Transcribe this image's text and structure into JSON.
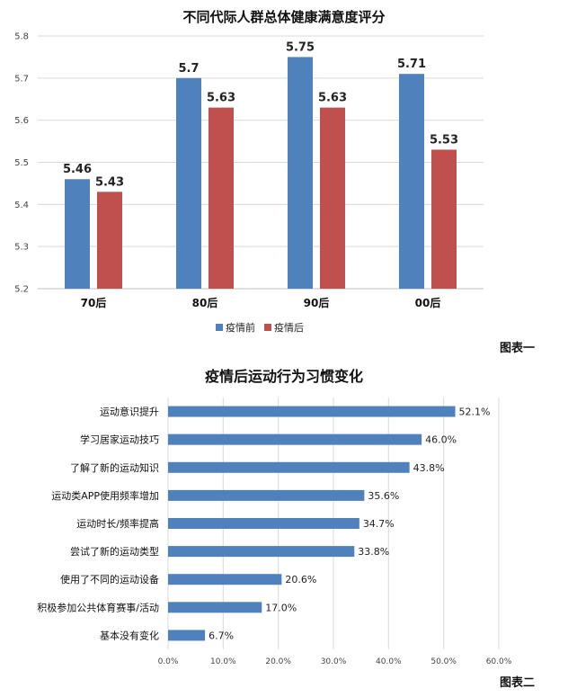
{
  "figure_labels": {
    "fig1": "图表一",
    "fig2": "图表二"
  },
  "chart_data": [
    {
      "type": "bar",
      "title": "不同代际人群总体健康满意度评分",
      "categories": [
        "70后",
        "80后",
        "90后",
        "00后"
      ],
      "series": [
        {
          "name": "疫情前",
          "values": [
            5.46,
            5.7,
            5.75,
            5.71
          ],
          "labels": [
            "5.46",
            "5.7",
            "5.75",
            "5.71"
          ],
          "color": "#4F81BD"
        },
        {
          "name": "疫情后",
          "values": [
            5.43,
            5.63,
            5.63,
            5.53
          ],
          "labels": [
            "5.43",
            "5.63",
            "5.63",
            "5.53"
          ],
          "color": "#C0504D"
        }
      ],
      "ylim": [
        5.2,
        5.8
      ],
      "yticks": [
        "5.2",
        "5.3",
        "5.4",
        "5.5",
        "5.6",
        "5.7",
        "5.8"
      ],
      "grid": true,
      "legend": "bottom"
    },
    {
      "type": "bar",
      "orientation": "horizontal",
      "title": "疫情后运动行为习惯变化",
      "categories": [
        "运动意识提升",
        "学习居家运动技巧",
        "了解了新的运动知识",
        "运动类APP使用频率增加",
        "运动时长/频率提高",
        "尝试了新的运动类型",
        "使用了不同的运动设备",
        "积极参加公共体育赛事/活动",
        "基本没有变化"
      ],
      "values": [
        52.1,
        46.0,
        43.8,
        35.6,
        34.7,
        33.8,
        20.6,
        17.0,
        6.7
      ],
      "labels": [
        "52.1%",
        "46.0%",
        "43.8%",
        "35.6%",
        "34.7%",
        "33.8%",
        "20.6%",
        "17.0%",
        "6.7%"
      ],
      "color": "#4F81BD",
      "xlim": [
        0,
        60
      ],
      "xticks": [
        "0.0%",
        "10.0%",
        "20.0%",
        "30.0%",
        "40.0%",
        "50.0%",
        "60.0%"
      ],
      "grid": true
    }
  ]
}
